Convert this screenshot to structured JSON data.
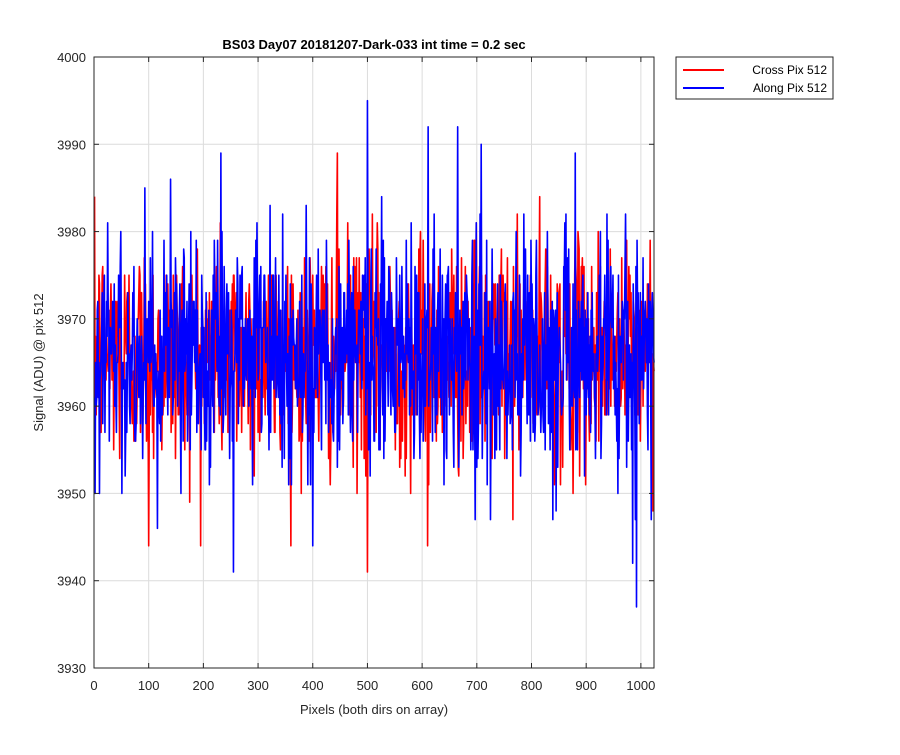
{
  "chart_data": {
    "type": "line",
    "title": "BS03 Day07 20181207-Dark-033 int time = 0.2 sec",
    "xlabel": "Pixels (both dirs on array)",
    "ylabel": "Signal (ADU) @ pix 512",
    "xlim": [
      0,
      1024
    ],
    "ylim": [
      3930,
      4000
    ],
    "xticks": [
      0,
      100,
      200,
      300,
      400,
      500,
      600,
      700,
      800,
      900,
      1000
    ],
    "yticks": [
      3930,
      3940,
      3950,
      3960,
      3970,
      3980,
      3990,
      4000
    ],
    "grid": true,
    "legend_position": "outside top-right",
    "series_styles": [
      {
        "name": "Cross Pix 512",
        "color": "#ff0000"
      },
      {
        "name": "Along Pix 512",
        "color": "#0000ff"
      }
    ],
    "series_summary": {
      "Cross Pix 512": {
        "typical_mean": 3966,
        "typical_std": 6.5,
        "min": 3941,
        "max": 3989
      },
      "Along Pix 512": {
        "typical_mean": 3966,
        "typical_std": 7,
        "min": 3937,
        "max": 3995
      }
    },
    "notable_points": {
      "Along Pix 512": [
        {
          "x": 500,
          "y": 3995
        },
        {
          "x": 665,
          "y": 3992
        },
        {
          "x": 880,
          "y": 3989
        },
        {
          "x": 140,
          "y": 3986
        },
        {
          "x": 255,
          "y": 3941
        },
        {
          "x": 985,
          "y": 3942
        },
        {
          "x": 992,
          "y": 3937
        },
        {
          "x": 400,
          "y": 3944
        }
      ],
      "Cross Pix 512": [
        {
          "x": 445,
          "y": 3989
        },
        {
          "x": 500,
          "y": 3941
        },
        {
          "x": 100,
          "y": 3944
        },
        {
          "x": 610,
          "y": 3944
        }
      ]
    }
  }
}
